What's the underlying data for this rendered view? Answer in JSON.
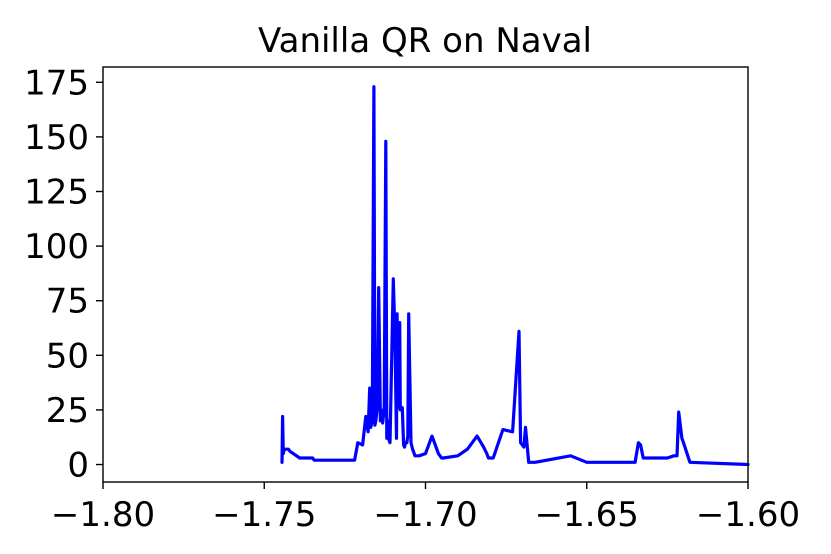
{
  "chart_data": {
    "type": "line",
    "title": "Vanilla QR on Naval",
    "xlabel": "",
    "ylabel": "",
    "xlim": [
      -1.8,
      -1.6
    ],
    "ylim": [
      -8,
      182
    ],
    "xticks": [
      -1.8,
      -1.75,
      -1.7,
      -1.65,
      -1.6
    ],
    "xtick_labels": [
      "−1.80",
      "−1.75",
      "−1.70",
      "−1.65",
      "−1.60"
    ],
    "yticks": [
      0,
      25,
      50,
      75,
      100,
      125,
      150,
      175
    ],
    "ytick_labels": [
      "0",
      "25",
      "50",
      "75",
      "100",
      "125",
      "150",
      "175"
    ],
    "grid": false,
    "line_color": "#0000ff",
    "series": [
      {
        "x": [
          -1.7445,
          -1.7443,
          -1.7441,
          -1.7438,
          -1.7425,
          -1.742,
          -1.739,
          -1.735,
          -1.7345,
          -1.722,
          -1.721,
          -1.7195,
          -1.7185,
          -1.7178,
          -1.7173,
          -1.717,
          -1.7165,
          -1.716,
          -1.7157,
          -1.7154,
          -1.715,
          -1.7145,
          -1.714,
          -1.7137,
          -1.7133,
          -1.7128,
          -1.7123,
          -1.712,
          -1.7117,
          -1.7113,
          -1.711,
          -1.71,
          -1.7095,
          -1.709,
          -1.7088,
          -1.7085,
          -1.7082,
          -1.708,
          -1.7078,
          -1.7075,
          -1.7072,
          -1.7068,
          -1.7065,
          -1.7062,
          -1.7058,
          -1.7055,
          -1.7052,
          -1.7045,
          -1.704,
          -1.7035,
          -1.7033,
          -1.703,
          -1.702,
          -1.7,
          -1.698,
          -1.696,
          -1.6955,
          -1.695,
          -1.6945,
          -1.69,
          -1.687,
          -1.684,
          -1.682,
          -1.681,
          -1.6805,
          -1.68,
          -1.679,
          -1.676,
          -1.673,
          -1.671,
          -1.6705,
          -1.67,
          -1.6695,
          -1.669,
          -1.668,
          -1.6675,
          -1.667,
          -1.666,
          -1.655,
          -1.65,
          -1.6495,
          -1.635,
          -1.634,
          -1.6333,
          -1.6325,
          -1.632,
          -1.63,
          -1.625,
          -1.623,
          -1.622,
          -1.6215,
          -1.6205,
          -1.62,
          -1.618,
          -1.6
        ],
        "y": [
          1,
          22,
          5,
          7,
          7,
          6,
          3,
          3,
          2,
          2,
          10,
          9,
          22,
          15,
          35,
          17,
          20,
          173,
          18,
          20,
          25,
          81,
          20,
          25,
          19,
          25,
          148,
          12,
          20,
          11,
          10,
          85,
          60,
          12,
          69,
          30,
          26,
          65,
          25,
          26,
          26,
          9,
          8,
          10,
          10,
          13,
          69,
          10,
          7,
          5,
          4,
          4,
          4,
          5,
          13,
          5,
          4,
          3,
          3,
          4,
          7,
          13,
          8,
          5,
          3,
          3,
          3,
          16,
          15,
          61,
          10,
          9,
          8,
          17,
          1,
          1,
          1,
          1,
          4,
          1,
          1,
          1,
          10,
          9,
          3,
          3,
          3,
          3,
          4,
          4,
          24,
          12,
          10,
          1,
          0
        ]
      }
    ]
  }
}
